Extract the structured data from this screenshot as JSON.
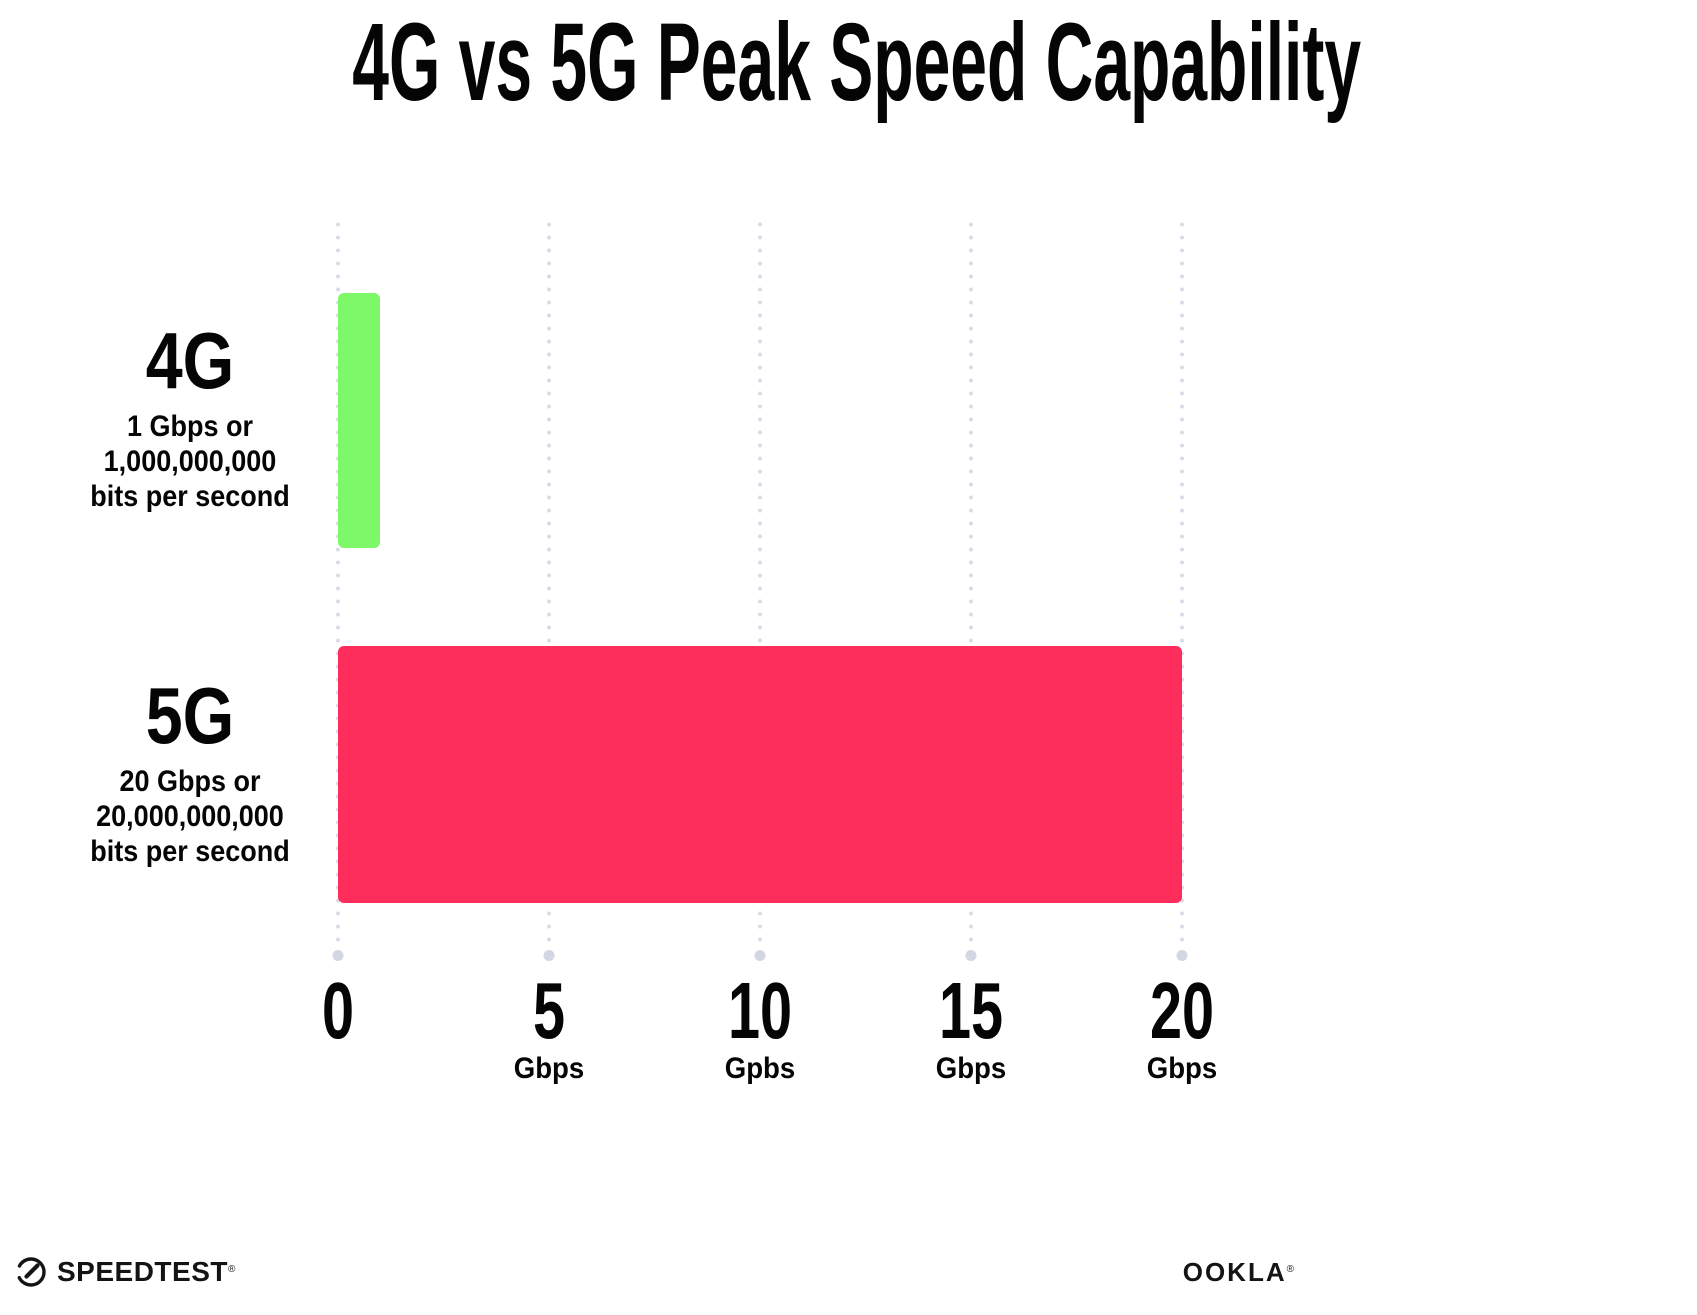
{
  "title": "4G vs 5G Peak Speed Capability",
  "chart_data": {
    "type": "bar",
    "orientation": "horizontal",
    "title": "4G vs 5G Peak Speed Capability",
    "categories": [
      "4G",
      "5G"
    ],
    "values": [
      1,
      20
    ],
    "value_unit": "Gbps",
    "xlim": [
      0,
      20
    ],
    "grid": "dotted-vertical",
    "legend": "none",
    "x_ticks": [
      {
        "label": "0",
        "value": 0,
        "unit": ""
      },
      {
        "label": "5",
        "value": 5,
        "unit": "Gbps"
      },
      {
        "label": "10",
        "value": 10,
        "unit": "Gpbs"
      },
      {
        "label": "15",
        "value": 15,
        "unit": "Gbps"
      },
      {
        "label": "20",
        "value": 20,
        "unit": "Gbps"
      }
    ],
    "rows": [
      {
        "label": "4G",
        "sub_lines": [
          "1 Gbps or",
          "1,000,000,000",
          "bits per second"
        ],
        "value": 1,
        "color": "#7DF869"
      },
      {
        "label": "5G",
        "sub_lines": [
          "20 Gbps or",
          "20,000,000,000",
          "bits per second"
        ],
        "value": 20,
        "color": "#FD2D5C"
      }
    ]
  },
  "colors": {
    "bar_4g": "#7DF869",
    "bar_5g": "#FD2D5C",
    "gridline_dot": "#D9DCE8",
    "axis_end_dot": "#D3D7E4",
    "text": "#050505",
    "background": "#FFFFFF"
  },
  "footer": {
    "speedtest_label": "SPEEDTEST",
    "speedtest_mark": "®",
    "ookla_label": "OOKLA",
    "ookla_mark": "®"
  }
}
